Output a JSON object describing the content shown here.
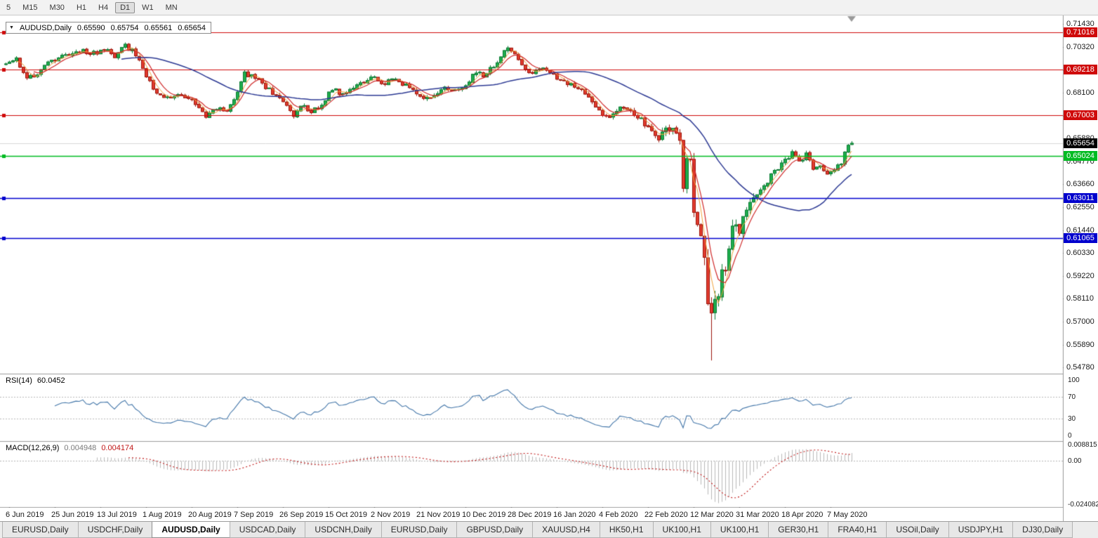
{
  "toolbar": {
    "timeframes": [
      {
        "label": "5",
        "active": false
      },
      {
        "label": "M15",
        "active": false
      },
      {
        "label": "M30",
        "active": false
      },
      {
        "label": "H1",
        "active": false
      },
      {
        "label": "H4",
        "active": false
      },
      {
        "label": "D1",
        "active": true
      },
      {
        "label": "W1",
        "active": false
      },
      {
        "label": "MN",
        "active": false
      }
    ]
  },
  "chart": {
    "symbol_line": {
      "symbol": "AUDUSD,Daily",
      "open": "0.65590",
      "high": "0.65754",
      "low": "0.65561",
      "close": "0.65654"
    }
  },
  "indicators": {
    "rsi": {
      "label": "RSI(14)",
      "value": "60.0452",
      "period": 14,
      "levels": [
        {
          "text": "100",
          "value": 100
        },
        {
          "text": "70",
          "value": 70
        },
        {
          "text": "30",
          "value": 30
        },
        {
          "text": "0",
          "value": 0
        }
      ],
      "line_color": "#4477aa"
    },
    "macd": {
      "label": "MACD(12,26,9)",
      "value_main": "0.004948",
      "value_signal": "0.004174",
      "fast": 12,
      "slow": 26,
      "signal": 9,
      "axis": [
        {
          "text": "0.008815",
          "value": 0.008815
        },
        {
          "text": "0.00",
          "value": 0.0
        },
        {
          "text": "-0.024082",
          "value": -0.024082
        }
      ],
      "scale_max": 0.008815,
      "scale_min": -0.024082,
      "hist_color": "#b9b9b9",
      "signal_color": "#c01515"
    }
  },
  "tabs": [
    {
      "label": "EURUSD,Daily",
      "active": false
    },
    {
      "label": "USDCHF,Daily",
      "active": false
    },
    {
      "label": "AUDUSD,Daily",
      "active": true
    },
    {
      "label": "USDCAD,Daily",
      "active": false
    },
    {
      "label": "USDCNH,Daily",
      "active": false
    },
    {
      "label": "EURUSD,Daily",
      "active": false
    },
    {
      "label": "GBPUSD,Daily",
      "active": false
    },
    {
      "label": "XAUUSD,H4",
      "active": false
    },
    {
      "label": "HK50,H1",
      "active": false
    },
    {
      "label": "UK100,H1",
      "active": false
    },
    {
      "label": "UK100,H1",
      "active": false
    },
    {
      "label": "GER30,H1",
      "active": false
    },
    {
      "label": "FRA40,H1",
      "active": false
    },
    {
      "label": "USOil,Daily",
      "active": false
    },
    {
      "label": "USDJPY,H1",
      "active": false
    },
    {
      "label": "DJ30,Daily",
      "active": false
    }
  ],
  "chart_data": {
    "type": "candlestick",
    "symbol": "AUDUSD",
    "timeframe": "Daily",
    "candle_count": 242,
    "x_labels": [
      "6 Jun 2019",
      "25 Jun 2019",
      "13 Jul 2019",
      "1 Aug 2019",
      "20 Aug 2019",
      "7 Sep 2019",
      "26 Sep 2019",
      "15 Oct 2019",
      "2 Nov 2019",
      "21 Nov 2019",
      "10 Dec 2019",
      "28 Dec 2019",
      "16 Jan 2020",
      "4 Feb 2020",
      "22 Feb 2020",
      "12 Mar 2020",
      "31 Mar 2020",
      "18 Apr 2020",
      "7 May 2020"
    ],
    "label_start_index": 1,
    "label_step": 13,
    "y_axis": {
      "plot_max": 0.7185,
      "plot_min": 0.5448,
      "ticks": [
        "0.71430",
        "0.70320",
        "0.69210",
        "0.68100",
        "0.66990",
        "0.65880",
        "0.64770",
        "0.63660",
        "0.62550",
        "0.61440",
        "0.60330",
        "0.59220",
        "0.58110",
        "0.57000",
        "0.55890",
        "0.54780"
      ]
    },
    "hlines": [
      {
        "value": 0.71016,
        "label": "0.71016",
        "color": "#cf0a0a"
      },
      {
        "value": 0.69218,
        "label": "0.69218",
        "color": "#cf0a0a"
      },
      {
        "value": 0.67003,
        "label": "0.67003",
        "color": "#cf0a0a"
      },
      {
        "value": 0.65024,
        "label": "0.65024",
        "color": "#00bb22"
      },
      {
        "value": 0.63011,
        "label": "0.63011",
        "color": "#0000cd"
      },
      {
        "value": 0.61065,
        "label": "0.61065",
        "color": "#0000cd"
      }
    ],
    "current_price": {
      "value": 0.65654,
      "label": "0.65654",
      "bg": "#000000"
    },
    "price_path_anchors": [
      [
        0,
        0.695
      ],
      [
        3,
        0.6972
      ],
      [
        6,
        0.688
      ],
      [
        9,
        0.6905
      ],
      [
        13,
        0.6968
      ],
      [
        18,
        0.7
      ],
      [
        22,
        0.7012
      ],
      [
        26,
        0.6998
      ],
      [
        29,
        0.7022
      ],
      [
        31,
        0.6986
      ],
      [
        34,
        0.7038
      ],
      [
        36,
        0.7015
      ],
      [
        39,
        0.693
      ],
      [
        42,
        0.683
      ],
      [
        45,
        0.678
      ],
      [
        48,
        0.6802
      ],
      [
        51,
        0.6792
      ],
      [
        54,
        0.6758
      ],
      [
        57,
        0.67
      ],
      [
        60,
        0.6732
      ],
      [
        63,
        0.6722
      ],
      [
        66,
        0.682
      ],
      [
        68,
        0.6902
      ],
      [
        71,
        0.6882
      ],
      [
        74,
        0.6838
      ],
      [
        78,
        0.678
      ],
      [
        82,
        0.67
      ],
      [
        84,
        0.6752
      ],
      [
        87,
        0.6712
      ],
      [
        90,
        0.6758
      ],
      [
        93,
        0.6832
      ],
      [
        96,
        0.68
      ],
      [
        100,
        0.6846
      ],
      [
        104,
        0.6886
      ],
      [
        108,
        0.6856
      ],
      [
        111,
        0.6882
      ],
      [
        114,
        0.6842
      ],
      [
        118,
        0.6798
      ],
      [
        121,
        0.6782
      ],
      [
        125,
        0.684
      ],
      [
        128,
        0.6818
      ],
      [
        131,
        0.6852
      ],
      [
        134,
        0.6916
      ],
      [
        136,
        0.6892
      ],
      [
        140,
        0.6958
      ],
      [
        143,
        0.7028
      ],
      [
        145,
        0.7
      ],
      [
        147,
        0.6938
      ],
      [
        150,
        0.6902
      ],
      [
        153,
        0.6926
      ],
      [
        156,
        0.6894
      ],
      [
        159,
        0.6862
      ],
      [
        162,
        0.6846
      ],
      [
        166,
        0.6788
      ],
      [
        169,
        0.6716
      ],
      [
        172,
        0.6692
      ],
      [
        175,
        0.6736
      ],
      [
        178,
        0.6722
      ],
      [
        181,
        0.6678
      ],
      [
        184,
        0.6622
      ],
      [
        186,
        0.6592
      ],
      [
        188,
        0.6632
      ],
      [
        190,
        0.6642
      ],
      [
        192,
        0.658
      ],
      [
        193,
        0.6338
      ],
      [
        194,
        0.6498
      ],
      [
        195,
        0.6488
      ],
      [
        196,
        0.6238
      ],
      [
        197,
        0.618
      ],
      [
        198,
        0.6122
      ],
      [
        199,
        0.6002
      ],
      [
        200,
        0.5795
      ],
      [
        201,
        0.5748
      ],
      [
        202,
        0.5802
      ],
      [
        203,
        0.5828
      ],
      [
        204,
        0.5958
      ],
      [
        205,
        0.5952
      ],
      [
        206,
        0.6062
      ],
      [
        207,
        0.6168
      ],
      [
        208,
        0.6168
      ],
      [
        209,
        0.6138
      ],
      [
        210,
        0.62
      ],
      [
        212,
        0.6282
      ],
      [
        214,
        0.6322
      ],
      [
        216,
        0.6352
      ],
      [
        218,
        0.6412
      ],
      [
        220,
        0.6448
      ],
      [
        222,
        0.6482
      ],
      [
        224,
        0.652
      ],
      [
        226,
        0.6472
      ],
      [
        228,
        0.6512
      ],
      [
        230,
        0.644
      ],
      [
        232,
        0.6452
      ],
      [
        234,
        0.6422
      ],
      [
        236,
        0.644
      ],
      [
        238,
        0.6472
      ],
      [
        239,
        0.6522
      ],
      [
        240,
        0.6552
      ],
      [
        241,
        0.65654
      ]
    ],
    "spike": {
      "index": 201,
      "low": 0.5512
    },
    "last_candle": {
      "open": 0.6559,
      "high": 0.65754,
      "low": 0.65561,
      "close": 0.65654
    },
    "moving_averages": [
      {
        "period": 4,
        "type": "sma",
        "color": "#f2a33c",
        "width": 1
      },
      {
        "period": 9,
        "type": "lwma",
        "color": "#d02a2a",
        "width": 1.2
      },
      {
        "period": 34,
        "type": "sma",
        "color": "#2d3a94",
        "width": 1.5
      }
    ],
    "colors": {
      "up": "#1fae4d",
      "up_border": "#0b7a33",
      "down": "#e23b2e",
      "down_border": "#9c150b",
      "bid_line": "#d9d9d9"
    }
  }
}
